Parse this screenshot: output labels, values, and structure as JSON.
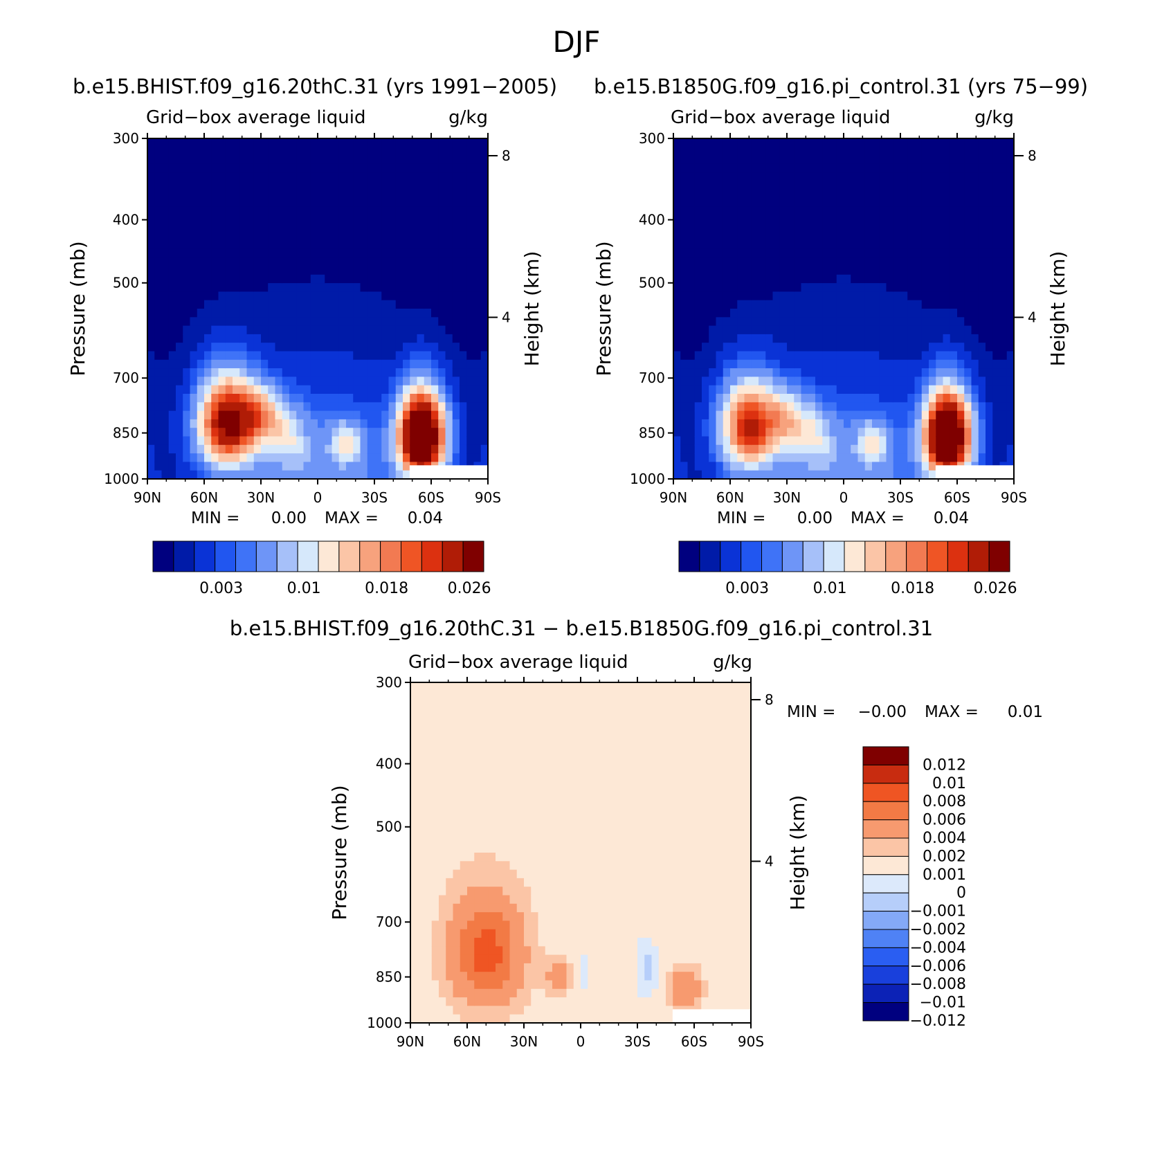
{
  "figure": {
    "title": "DJF"
  },
  "colors": {
    "abs_levels": [
      "#00007f",
      "#001ba8",
      "#0a33d6",
      "#2156f0",
      "#3f73f7",
      "#6e95f7",
      "#a6c0f9",
      "#d6e8fb",
      "#fde8d6",
      "#fbc5a7",
      "#f7a27d",
      "#f27a52",
      "#ef5525",
      "#dc3110",
      "#b01c06",
      "#7f0000"
    ],
    "diff_levels": [
      "#00007f",
      "#0c22b6",
      "#1940dc",
      "#2a5ef2",
      "#4f82f5",
      "#84a9f7",
      "#b6cefa",
      "#dce9fb",
      "#fde8d6",
      "#fbc5a6",
      "#f79a6f",
      "#f27a45",
      "#ef5523",
      "#c82c10",
      "#7f0000"
    ],
    "missing": "#ffffff"
  },
  "chart_data": [
    {
      "type": "heatmap",
      "id": "panel1",
      "case_title": "b.e15.BHIST.f09_g16.20thC.31 (yrs 1991−2005)",
      "variable": "Grid−box average liquid",
      "units": "g/kg",
      "xlabel": "",
      "ylabel": "Pressure (mb)",
      "y2label": "Height (km)",
      "x_ticks": [
        "90N",
        "60N",
        "30N",
        "0",
        "30S",
        "60S",
        "90S"
      ],
      "x_range": [
        90,
        -90
      ],
      "y_ticks": [
        "300",
        "400",
        "500",
        "700",
        "850",
        "1000"
      ],
      "y_range": [
        300,
        1000
      ],
      "y2_ticks": [
        "8",
        "4"
      ],
      "min_label": "MIN =",
      "min_value": "0.00",
      "max_label": "MAX =",
      "max_value": "0.04",
      "colorbar_labels": [
        "0.003",
        "0.01",
        "0.018",
        "0.026"
      ],
      "blobs": [
        {
          "lat": 48,
          "p": 820,
          "dlat": 14,
          "dp": 120,
          "amp": 0.026
        },
        {
          "lat": 30,
          "p": 800,
          "dlat": 12,
          "dp": 80,
          "amp": 0.012
        },
        {
          "lat": -55,
          "p": 860,
          "dlat": 11,
          "dp": 120,
          "amp": 0.04
        },
        {
          "lat": -15,
          "p": 880,
          "dlat": 8,
          "dp": 60,
          "amp": 0.008
        },
        {
          "lat": 15,
          "p": 870,
          "dlat": 10,
          "dp": 80,
          "amp": 0.006
        }
      ]
    },
    {
      "type": "heatmap",
      "id": "panel2",
      "case_title": "b.e15.B1850G.f09_g16.pi_control.31 (yrs 75−99)",
      "variable": "Grid−box average liquid",
      "units": "g/kg",
      "xlabel": "",
      "ylabel": "Pressure (mb)",
      "y2label": "Height (km)",
      "x_ticks": [
        "90N",
        "60N",
        "30N",
        "0",
        "30S",
        "60S",
        "90S"
      ],
      "x_range": [
        90,
        -90
      ],
      "y_ticks": [
        "300",
        "400",
        "500",
        "700",
        "850",
        "1000"
      ],
      "y_range": [
        300,
        1000
      ],
      "y2_ticks": [
        "8",
        "4"
      ],
      "min_label": "MIN =",
      "min_value": "0.00",
      "max_label": "MAX =",
      "max_value": "0.04",
      "colorbar_labels": [
        "0.003",
        "0.01",
        "0.018",
        "0.026"
      ],
      "blobs": [
        {
          "lat": 50,
          "p": 830,
          "dlat": 14,
          "dp": 120,
          "amp": 0.021
        },
        {
          "lat": 30,
          "p": 810,
          "dlat": 12,
          "dp": 80,
          "amp": 0.01
        },
        {
          "lat": -55,
          "p": 860,
          "dlat": 11,
          "dp": 120,
          "amp": 0.04
        },
        {
          "lat": -15,
          "p": 880,
          "dlat": 8,
          "dp": 60,
          "amp": 0.008
        },
        {
          "lat": 15,
          "p": 870,
          "dlat": 10,
          "dp": 80,
          "amp": 0.006
        }
      ]
    },
    {
      "type": "heatmap",
      "id": "panel3",
      "case_title": "b.e15.BHIST.f09_g16.20thC.31 − b.e15.B1850G.f09_g16.pi_control.31",
      "variable": "Grid−box average liquid",
      "units": "g/kg",
      "xlabel": "",
      "ylabel": "Pressure (mb)",
      "y2label": "Height (km)",
      "x_ticks": [
        "90N",
        "60N",
        "30N",
        "0",
        "30S",
        "60S",
        "90S"
      ],
      "x_range": [
        90,
        -90
      ],
      "y_ticks": [
        "300",
        "400",
        "500",
        "700",
        "850",
        "1000"
      ],
      "y_range": [
        300,
        1000
      ],
      "y2_ticks": [
        "8",
        "4"
      ],
      "min_label": "MIN =",
      "min_value": "−0.00",
      "max_label": "MAX =",
      "max_value": "0.01",
      "colorbar_labels": [
        "0.012",
        "0.01",
        "0.008",
        "0.006",
        "0.004",
        "0.002",
        "0.001",
        "0",
        "−0.001",
        "−0.002",
        "−0.004",
        "−0.006",
        "−0.008",
        "−0.01",
        "−0.012"
      ],
      "blobs": [
        {
          "lat": 50,
          "p": 780,
          "dlat": 18,
          "dp": 140,
          "amp": 0.0065
        },
        {
          "lat": 12,
          "p": 850,
          "dlat": 6,
          "dp": 50,
          "amp": 0.0025
        },
        {
          "lat": -55,
          "p": 890,
          "dlat": 8,
          "dp": 60,
          "amp": 0.0035
        },
        {
          "lat": -35,
          "p": 830,
          "dlat": 5,
          "dp": 90,
          "amp": -0.0018
        },
        {
          "lat": -2,
          "p": 840,
          "dlat": 3,
          "dp": 80,
          "amp": -0.0008
        }
      ]
    }
  ]
}
